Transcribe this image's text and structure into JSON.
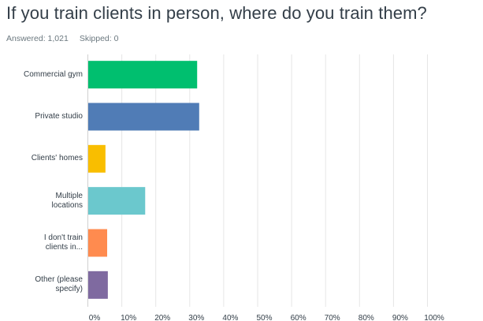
{
  "question": {
    "title": "If you train clients in person, where do you train them?",
    "answered_label": "Answered: 1,021",
    "skipped_label": "Skipped: 0"
  },
  "chart_data": {
    "type": "bar",
    "orientation": "horizontal",
    "categories": [
      [
        "Commercial gym"
      ],
      [
        "Private studio"
      ],
      [
        "Clients' homes"
      ],
      [
        "Multiple",
        "locations"
      ],
      [
        "I don't train",
        "clients in..."
      ],
      [
        "Other (please",
        "specify)"
      ]
    ],
    "values": [
      32.3,
      32.9,
      5.3,
      17.0,
      5.8,
      6.0
    ],
    "colors": [
      "#00bf6f",
      "#507cb6",
      "#f9be00",
      "#6bc8cd",
      "#ff8b4f",
      "#7f6aa0"
    ],
    "xlim": [
      0,
      100
    ],
    "xticks": [
      0,
      10,
      20,
      30,
      40,
      50,
      60,
      70,
      80,
      90,
      100
    ],
    "xtick_labels": [
      "0%",
      "10%",
      "20%",
      "30%",
      "40%",
      "50%",
      "60%",
      "70%",
      "80%",
      "90%",
      "100%"
    ],
    "grid": true,
    "grid_color": "#e6e6e6"
  }
}
